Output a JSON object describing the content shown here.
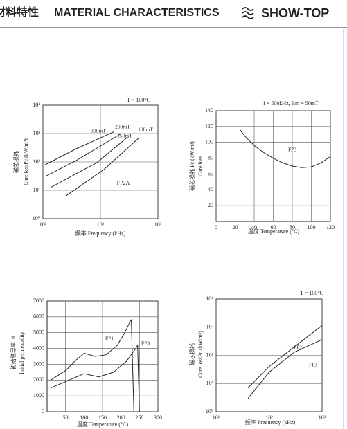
{
  "header": {
    "title_cn": "材料特性",
    "title": "MATERIAL CHARACTERISTICS",
    "brand": "SHOW-TOP"
  },
  "chart_data": [
    {
      "type": "line",
      "xlog": true,
      "ylog": true,
      "grid": true,
      "xlabel": "频率  Frequency (kHz)",
      "ylabel_cn": "磁芯损耗",
      "ylabel": "Core lossPc (kW/m³)",
      "annotations": [
        "T = 100°C",
        "FP2A"
      ],
      "xlim": [
        10,
        1000
      ],
      "ylim": [
        1,
        10000
      ],
      "xticks": [
        {
          "value": 10,
          "label": "10¹"
        },
        {
          "value": 100,
          "label": "10²"
        },
        {
          "value": 1000,
          "label": "10³"
        }
      ],
      "yticks": [
        {
          "value": 1,
          "label": "10⁰"
        },
        {
          "value": 10,
          "label": "10¹"
        },
        {
          "value": 100,
          "label": "10²"
        },
        {
          "value": 1000,
          "label": "10³"
        },
        {
          "value": 10000,
          "label": "10⁴"
        }
      ],
      "series": [
        {
          "name": "300mT",
          "color": "#222",
          "x": [
            11,
            38,
            174
          ],
          "values": [
            80,
            290,
            1170
          ]
        },
        {
          "name": "200mT",
          "color": "#222",
          "x": [
            11,
            38,
            230
          ],
          "values": [
            31,
            112,
            1000
          ]
        },
        {
          "name": "150mT",
          "color": "#222",
          "x": [
            14,
            87,
            300
          ],
          "values": [
            13,
            95,
            760
          ]
        },
        {
          "name": "100mT",
          "color": "#222",
          "x": [
            25,
            115,
            460
          ],
          "values": [
            6.3,
            54,
            680
          ]
        }
      ]
    },
    {
      "type": "line",
      "grid": true,
      "xlabel": "温度  Temperature (°C)",
      "ylabel_cn": "磁芯损耗 Pc (kW/m³)",
      "ylabel": "Core loss",
      "annotations": [
        "f = 500kHz, Bm = 50mT"
      ],
      "xlim": [
        0,
        120
      ],
      "ylim": [
        0,
        140
      ],
      "xticks": [
        0,
        20,
        40,
        60,
        80,
        100,
        120
      ],
      "yticks": [
        20,
        40,
        60,
        80,
        100,
        120,
        140
      ],
      "series": [
        {
          "name": "FP3",
          "color": "#222",
          "x": [
            25,
            30,
            40,
            50,
            60,
            70,
            80,
            90,
            100,
            110,
            120
          ],
          "values": [
            116,
            108,
            96,
            87,
            80,
            74,
            70,
            68,
            69,
            74,
            82
          ]
        }
      ]
    },
    {
      "type": "line",
      "grid": true,
      "xlabel": "温度  Temperature (°C)",
      "ylabel_cn": "初始磁导率 μi",
      "ylabel": "Initial permeability",
      "annotations": [],
      "xlim": [
        0,
        300
      ],
      "ylim": [
        0,
        7000
      ],
      "xticks": [
        50,
        100,
        150,
        200,
        250,
        300
      ],
      "yticks": [
        0,
        1000,
        2000,
        3000,
        4000,
        5000,
        6000,
        7000
      ],
      "series": [
        {
          "name": "FP1",
          "color": "#222",
          "x": [
            10,
            50,
            80,
            100,
            130,
            160,
            190,
            210,
            225,
            228,
            235
          ],
          "values": [
            2000,
            2600,
            3300,
            3700,
            3500,
            3600,
            4200,
            5000,
            5700,
            5800,
            0
          ]
        },
        {
          "name": "FP3",
          "color": "#222",
          "x": [
            10,
            50,
            80,
            100,
            140,
            180,
            215,
            240,
            245,
            250
          ],
          "values": [
            1500,
            1900,
            2200,
            2400,
            2200,
            2500,
            3200,
            4000,
            4200,
            0
          ]
        }
      ]
    },
    {
      "type": "line",
      "xlog": true,
      "ylog": true,
      "grid": true,
      "xlabel": "频率  Frequency (kHz)",
      "ylabel_cn": "磁芯损耗",
      "ylabel": "Core lossPc (kW/m³)",
      "annotations": [
        "T = 100°C"
      ],
      "xlim": [
        10,
        1000
      ],
      "ylim": [
        1,
        10000
      ],
      "xticks": [
        {
          "value": 10,
          "label": "10¹"
        },
        {
          "value": 100,
          "label": "10²"
        },
        {
          "value": 1000,
          "label": "10³"
        }
      ],
      "yticks": [
        {
          "value": 1,
          "label": "10⁰"
        },
        {
          "value": 10,
          "label": "10¹"
        },
        {
          "value": 100,
          "label": "10²"
        },
        {
          "value": 1000,
          "label": "10³"
        },
        {
          "value": 10000,
          "label": "10⁴"
        }
      ],
      "series": [
        {
          "name": "FP2",
          "color": "#222",
          "x": [
            40,
            100,
            300,
            1000
          ],
          "values": [
            7,
            40,
            200,
            1150
          ]
        },
        {
          "name": "FP3",
          "color": "#222",
          "x": [
            40,
            100,
            300,
            1000
          ],
          "values": [
            3,
            25,
            130,
            360
          ]
        }
      ]
    }
  ]
}
